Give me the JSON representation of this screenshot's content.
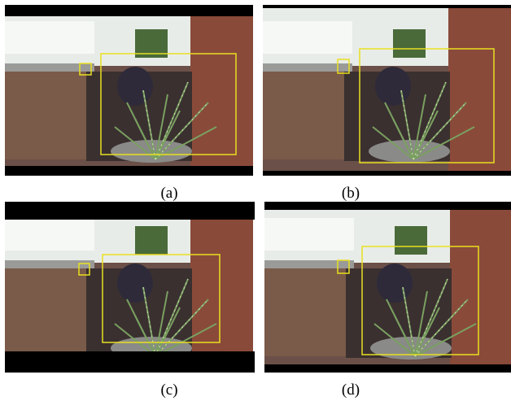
{
  "figure": {
    "captions": [
      "(a)",
      "(b)",
      "(c)",
      "(d)"
    ]
  }
}
